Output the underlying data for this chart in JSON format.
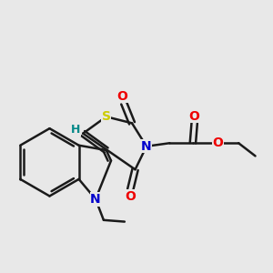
{
  "bg_color": "#e8e8e8",
  "bond_color": "#1a1a1a",
  "bond_width": 1.8,
  "atom_colors": {
    "S": "#cccc00",
    "N": "#0000cc",
    "O": "#ee0000",
    "H": "#008888",
    "C": "#1a1a1a"
  },
  "font_size": 10
}
